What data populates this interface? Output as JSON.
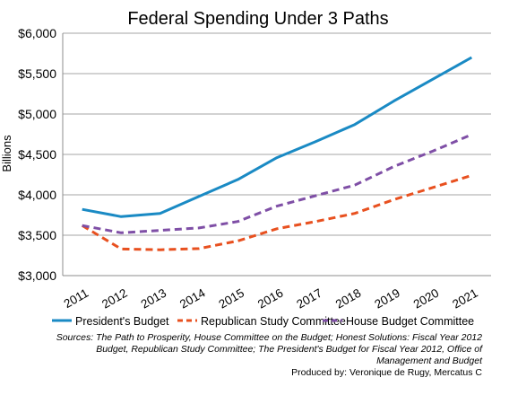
{
  "chart_data": {
    "type": "line",
    "title": "Federal Spending Under 3 Paths",
    "ylabel": "Billions",
    "xlabel": "",
    "x": [
      "2011",
      "2012",
      "2013",
      "2014",
      "2015",
      "2016",
      "2017",
      "2018",
      "2019",
      "2020",
      "2021"
    ],
    "ylim": [
      3000,
      6000
    ],
    "yticks": [
      "$3,000",
      "$3,500",
      "$4,000",
      "$4,500",
      "$5,000",
      "$5,500",
      "$6,000"
    ],
    "ytick_values": [
      3000,
      3500,
      4000,
      4500,
      5000,
      5500,
      6000
    ],
    "grid": "horizontal",
    "legend_position": "bottom",
    "series": [
      {
        "name": "President's Budget",
        "color": "#1a8ac4",
        "dash": "solid",
        "values": [
          3820,
          3730,
          3770,
          3980,
          4190,
          4460,
          4660,
          4870,
          5160,
          5430,
          5700
        ]
      },
      {
        "name": "Republican Study Committee",
        "color": "#e8501f",
        "dash": "dashed",
        "values": [
          3620,
          3330,
          3320,
          3335,
          3430,
          3580,
          3670,
          3770,
          3940,
          4090,
          4240
        ]
      },
      {
        "name": "House Budget Committee",
        "color": "#7f4fa6",
        "dash": "dashed",
        "values": [
          3620,
          3530,
          3560,
          3590,
          3670,
          3860,
          3990,
          4120,
          4350,
          4540,
          4745
        ]
      }
    ]
  },
  "notes": {
    "sources": [
      "Sources:  The Path to Prosperity, House Committee on the Budget; Honest Solutions: Fiscal Year 2012",
      "Budget, Republican Study Committee;  The President's Budget for Fiscal Year 2012, Office of",
      "Management and Budget"
    ],
    "credit": "Produced by: Veronique de Rugy, Mercatus C"
  }
}
